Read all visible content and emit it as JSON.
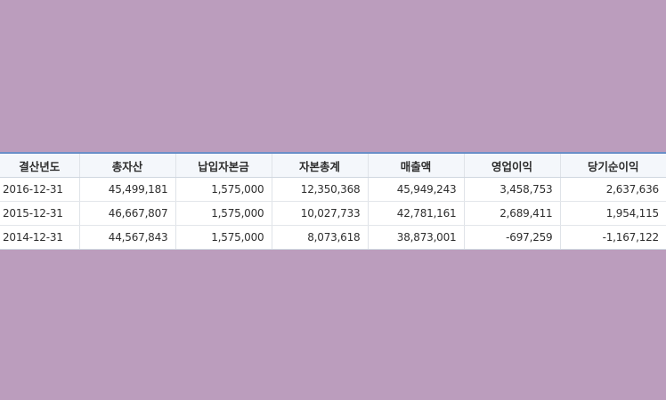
{
  "table": {
    "headers": [
      "결산년도",
      "총자산",
      "납입자본금",
      "자본총계",
      "매출액",
      "영업이익",
      "당기순이익"
    ],
    "rows": [
      [
        "2016-12-31",
        "45,499,181",
        "1,575,000",
        "12,350,368",
        "45,949,243",
        "3,458,753",
        "2,637,636"
      ],
      [
        "2015-12-31",
        "46,667,807",
        "1,575,000",
        "10,027,733",
        "42,781,161",
        "2,689,411",
        "1,954,115"
      ],
      [
        "2014-12-31",
        "44,567,843",
        "1,575,000",
        "8,073,618",
        "38,873,001",
        "-697,259",
        "-1,167,122"
      ]
    ]
  },
  "colors": {
    "page_background": "#bb9dbd",
    "header_background": "#f4f7fb",
    "top_border_accent": "#6a8fc8"
  }
}
